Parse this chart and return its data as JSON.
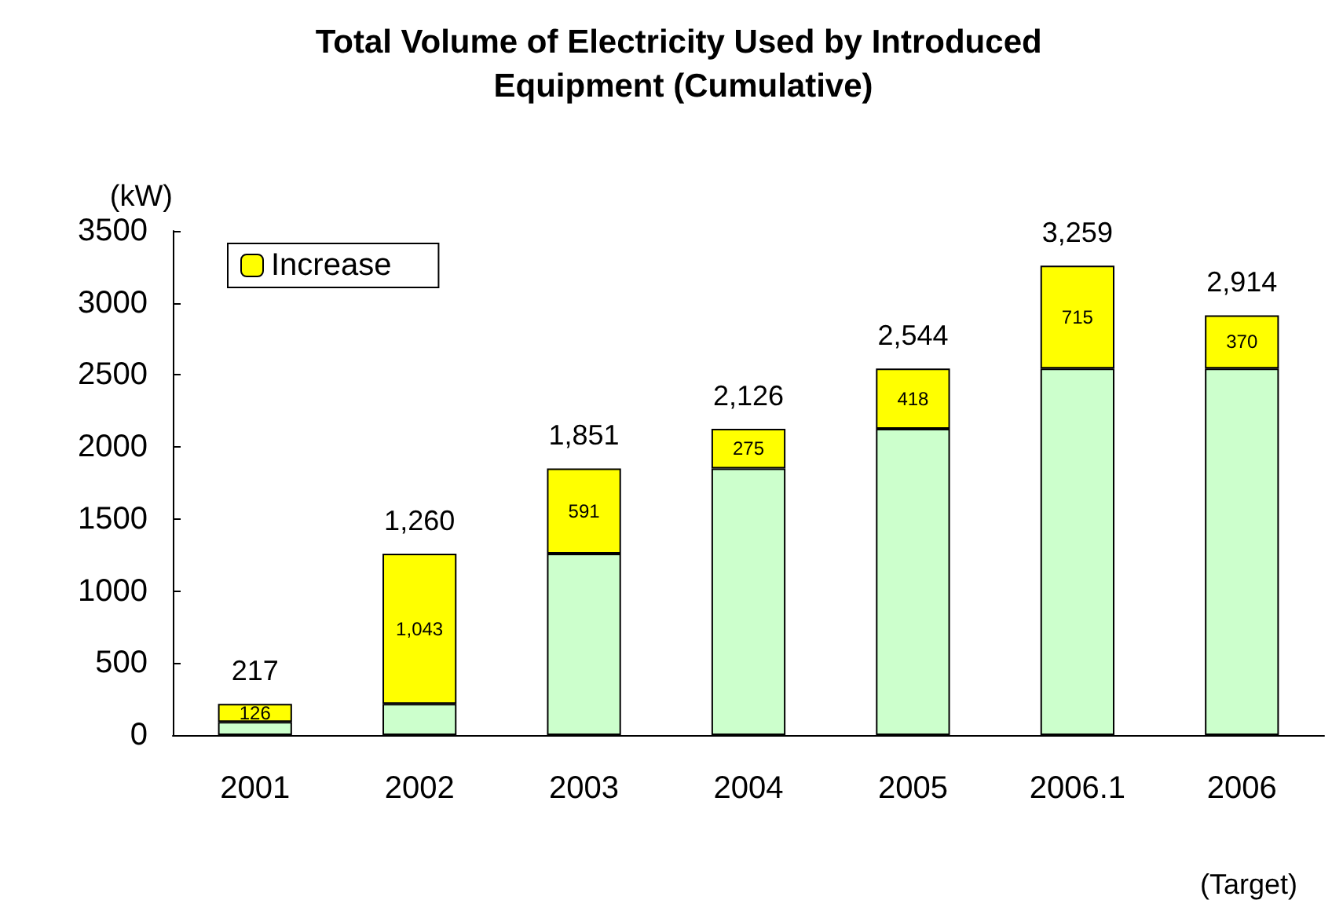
{
  "chart_data": {
    "type": "bar",
    "title": "Total Volume of Electricity Used by Introduced Equipment (Cumulative)",
    "ylabel": "(kW)",
    "annotations": [
      "(Target)"
    ],
    "categories": [
      "2001",
      "2002",
      "2003",
      "2004",
      "2005",
      "2006.1",
      "2006"
    ],
    "stacked": true,
    "series": [
      {
        "color": "#ccffcc",
        "values": [
          91,
          217,
          1260,
          1851,
          2126,
          2544,
          2544
        ]
      },
      {
        "name": "Increase",
        "color": "#ffff00",
        "values": [
          126,
          1043,
          591,
          275,
          418,
          715,
          370
        ],
        "value_labels": [
          "126",
          "1,043",
          "591",
          "275",
          "418",
          "715",
          "370"
        ]
      }
    ],
    "totals": [
      "217",
      "1,260",
      "1,851",
      "2,126",
      "2,544",
      "3,259",
      "2,914"
    ],
    "ylim": [
      0,
      3500
    ],
    "yticks": [
      0,
      500,
      1000,
      1500,
      2000,
      2500,
      3000,
      3500
    ],
    "grid": false,
    "legend": "top left"
  }
}
